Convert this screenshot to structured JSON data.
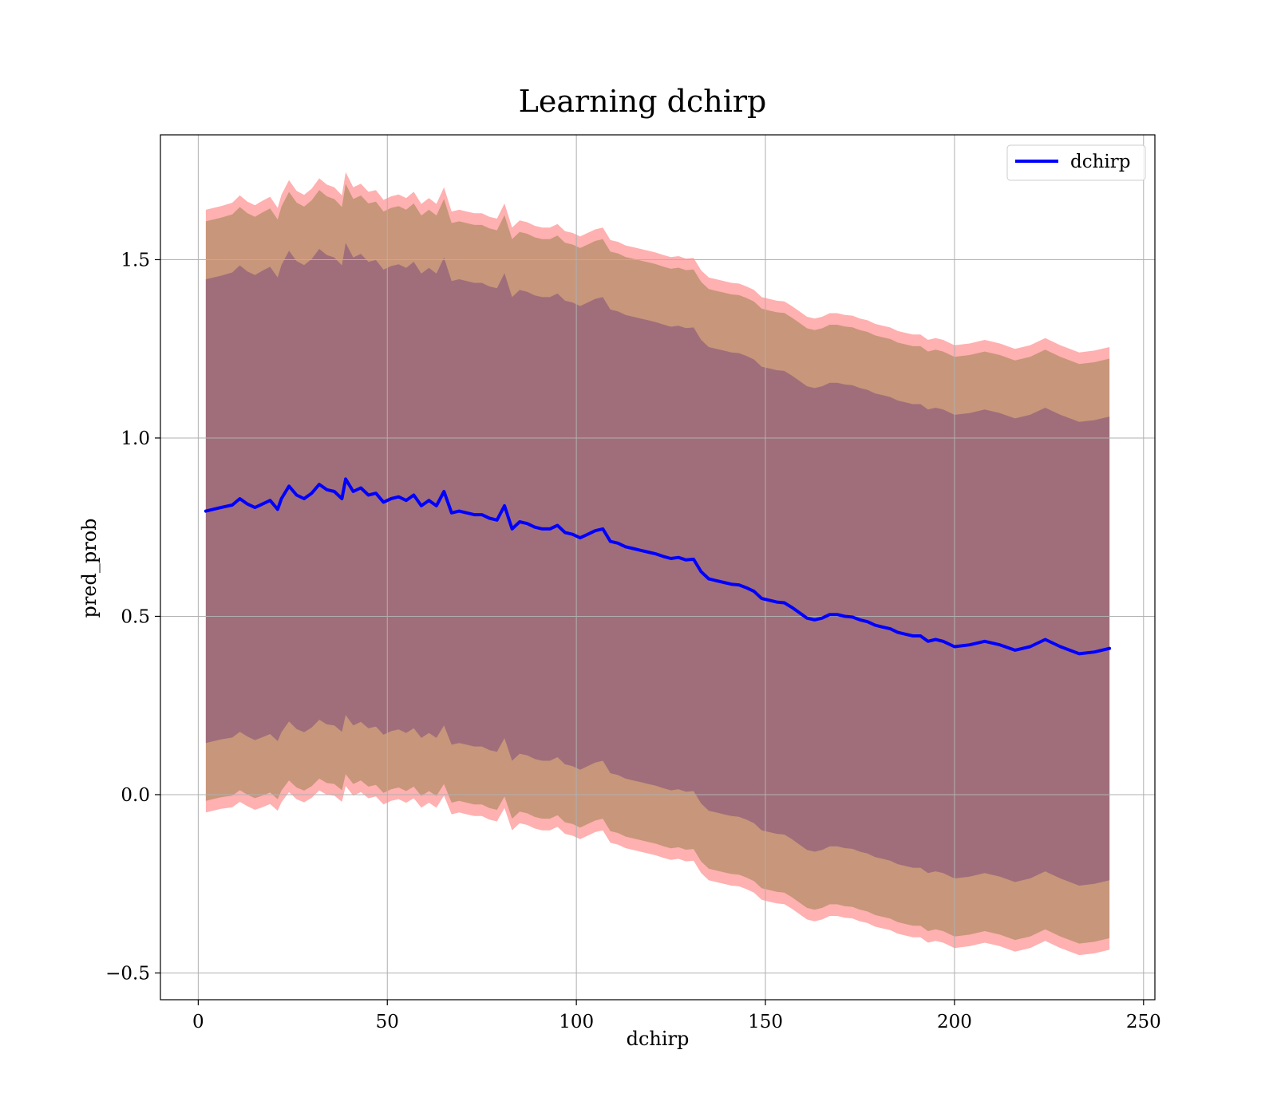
{
  "chart_data": {
    "type": "line",
    "title": "Learning dchirp",
    "xlabel": "dchirp",
    "ylabel": "pred_prob",
    "xlim": [
      -10,
      253
    ],
    "ylim": [
      -0.575,
      1.85
    ],
    "x_ticks": [
      0,
      50,
      100,
      150,
      200,
      250
    ],
    "y_ticks": [
      -0.5,
      0.0,
      0.5,
      1.0,
      1.5
    ],
    "x_tick_labels": [
      "0",
      "50",
      "100",
      "150",
      "200",
      "250"
    ],
    "y_tick_labels": [
      "−0.5",
      "0.0",
      "0.5",
      "1.0",
      "1.5"
    ],
    "grid": true,
    "legend": {
      "position": "top-right",
      "entries": [
        "dchirp"
      ]
    },
    "series": [
      {
        "name": "dchirp",
        "color": "#0000ff",
        "x": [
          2,
          6,
          9,
          11,
          13,
          15,
          17,
          19,
          21,
          22,
          24,
          26,
          28,
          30,
          32,
          34,
          36,
          38,
          39,
          41,
          43,
          45,
          47,
          49,
          51,
          53,
          55,
          57,
          59,
          61,
          63,
          65,
          67,
          69,
          71,
          73,
          75,
          77,
          79,
          81,
          83,
          85,
          87,
          89,
          91,
          93,
          95,
          97,
          99,
          101,
          103,
          105,
          107,
          109,
          111,
          113,
          115,
          117,
          119,
          121,
          123,
          125,
          127,
          129,
          131,
          133,
          135,
          137,
          139,
          141,
          143,
          145,
          147,
          149,
          151,
          153,
          155,
          157,
          159,
          161,
          163,
          165,
          167,
          169,
          171,
          173,
          175,
          177,
          179,
          181,
          183,
          185,
          187,
          189,
          191,
          193,
          195,
          197,
          200,
          204,
          208,
          212,
          216,
          220,
          224,
          228,
          233,
          237,
          241
        ],
        "y": [
          0.795,
          0.805,
          0.812,
          0.83,
          0.815,
          0.805,
          0.815,
          0.825,
          0.8,
          0.83,
          0.865,
          0.84,
          0.83,
          0.845,
          0.87,
          0.855,
          0.85,
          0.83,
          0.885,
          0.85,
          0.86,
          0.84,
          0.845,
          0.82,
          0.83,
          0.835,
          0.825,
          0.84,
          0.81,
          0.825,
          0.81,
          0.85,
          0.79,
          0.795,
          0.79,
          0.785,
          0.785,
          0.775,
          0.77,
          0.81,
          0.745,
          0.765,
          0.76,
          0.75,
          0.745,
          0.745,
          0.755,
          0.735,
          0.73,
          0.72,
          0.73,
          0.74,
          0.745,
          0.71,
          0.705,
          0.695,
          0.69,
          0.685,
          0.68,
          0.675,
          0.668,
          0.662,
          0.665,
          0.658,
          0.66,
          0.625,
          0.605,
          0.6,
          0.595,
          0.59,
          0.588,
          0.58,
          0.57,
          0.55,
          0.545,
          0.54,
          0.538,
          0.525,
          0.51,
          0.495,
          0.49,
          0.495,
          0.505,
          0.505,
          0.5,
          0.498,
          0.49,
          0.485,
          0.475,
          0.47,
          0.465,
          0.455,
          0.45,
          0.445,
          0.445,
          0.43,
          0.435,
          0.43,
          0.415,
          0.42,
          0.43,
          0.42,
          0.405,
          0.415,
          0.435,
          0.415,
          0.395,
          0.4,
          0.41
        ],
        "std": [
          0.65,
          0.65,
          0.652,
          0.654,
          0.652,
          0.652,
          0.654,
          0.655,
          0.65,
          0.655,
          0.66,
          0.656,
          0.655,
          0.657,
          0.66,
          0.658,
          0.656,
          0.654,
          0.662,
          0.656,
          0.656,
          0.654,
          0.654,
          0.652,
          0.652,
          0.652,
          0.652,
          0.654,
          0.651,
          0.652,
          0.651,
          0.656,
          0.65,
          0.65,
          0.65,
          0.65,
          0.65,
          0.65,
          0.65,
          0.652,
          0.65,
          0.65,
          0.65,
          0.65,
          0.65,
          0.65,
          0.65,
          0.65,
          0.65,
          0.65,
          0.65,
          0.65,
          0.65,
          0.65,
          0.65,
          0.65,
          0.65,
          0.65,
          0.65,
          0.65,
          0.65,
          0.65,
          0.65,
          0.65,
          0.65,
          0.65,
          0.65,
          0.65,
          0.65,
          0.65,
          0.65,
          0.65,
          0.65,
          0.65,
          0.65,
          0.65,
          0.65,
          0.65,
          0.65,
          0.65,
          0.65,
          0.65,
          0.65,
          0.65,
          0.65,
          0.65,
          0.65,
          0.65,
          0.65,
          0.65,
          0.65,
          0.65,
          0.65,
          0.65,
          0.65,
          0.65,
          0.65,
          0.65,
          0.65,
          0.65,
          0.65,
          0.65,
          0.65,
          0.65,
          0.65,
          0.65,
          0.65,
          0.65,
          0.65
        ]
      }
    ],
    "bands": [
      {
        "sigma": 1.0,
        "fill": "#a06e7a"
      },
      {
        "sigma": 1.25,
        "fill": "#c8967a"
      },
      {
        "sigma": 1.3,
        "fill": "#ffb0b0"
      }
    ]
  }
}
